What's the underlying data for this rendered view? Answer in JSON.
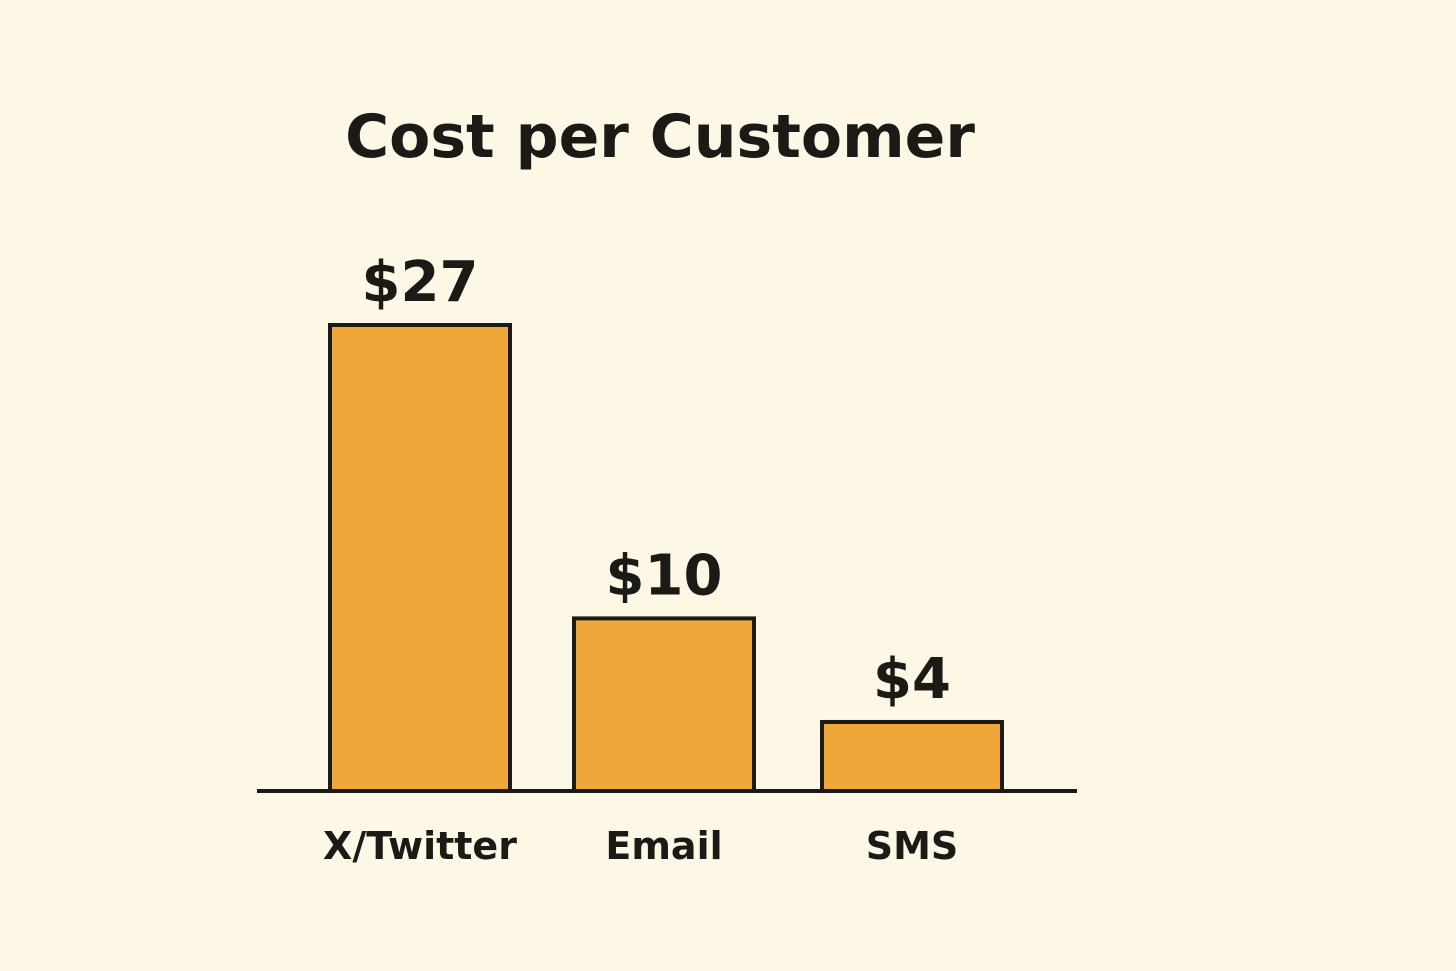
{
  "chart_data": {
    "type": "bar",
    "title": "Cost per Customer",
    "categories": [
      "X/Twitter",
      "Email",
      "SMS"
    ],
    "values": [
      27,
      10,
      4
    ],
    "value_labels": [
      "$27",
      "$10",
      "$4"
    ],
    "color": "#f0a73a"
  }
}
